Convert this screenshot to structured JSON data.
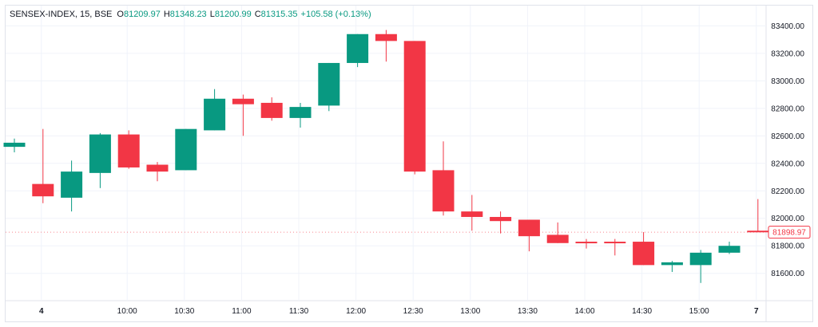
{
  "header": {
    "symbol": "SENSEX-INDEX, 15, BSE",
    "o_label": "O",
    "o_value": "81209.97",
    "h_label": "H",
    "h_value": "81348.23",
    "l_label": "L",
    "l_value": "81200.99",
    "c_label": "C",
    "c_value": "81315.35",
    "change": "+105.58 (+0.13%)"
  },
  "colors": {
    "up": "#089981",
    "down": "#f23645",
    "grid": "#f0f3fa",
    "border": "#e0e3eb"
  },
  "price_tag": "81898.97",
  "chart_data": {
    "type": "candlestick",
    "ylim": [
      81430,
      83530
    ],
    "y_ticks": [
      "83400.00",
      "83200.00",
      "83000.00",
      "82800.00",
      "82600.00",
      "82400.00",
      "82200.00",
      "82000.00",
      "81800.00",
      "81600.00"
    ],
    "x_ticks": [
      {
        "label": "4",
        "index": 1,
        "bold": true
      },
      {
        "label": "10:00",
        "index": 4
      },
      {
        "label": "10:30",
        "index": 6
      },
      {
        "label": "11:00",
        "index": 8
      },
      {
        "label": "11:30",
        "index": 10
      },
      {
        "label": "12:00",
        "index": 12
      },
      {
        "label": "12:30",
        "index": 14
      },
      {
        "label": "13:00",
        "index": 16
      },
      {
        "label": "13:30",
        "index": 18
      },
      {
        "label": "14:00",
        "index": 20
      },
      {
        "label": "14:30",
        "index": 22
      },
      {
        "label": "15:00",
        "index": 24
      },
      {
        "label": "7",
        "index": 26,
        "bold": true
      }
    ],
    "candles": [
      {
        "o": 82520,
        "h": 82580,
        "l": 82480,
        "c": 82550
      },
      {
        "o": 82250,
        "h": 82650,
        "l": 82110,
        "c": 82160
      },
      {
        "o": 82150,
        "h": 82420,
        "l": 82050,
        "c": 82340
      },
      {
        "o": 82330,
        "h": 82620,
        "l": 82220,
        "c": 82610
      },
      {
        "o": 82610,
        "h": 82640,
        "l": 82360,
        "c": 82370
      },
      {
        "o": 82390,
        "h": 82410,
        "l": 82270,
        "c": 82340
      },
      {
        "o": 82350,
        "h": 82650,
        "l": 82350,
        "c": 82650
      },
      {
        "o": 82640,
        "h": 82940,
        "l": 82640,
        "c": 82870
      },
      {
        "o": 82870,
        "h": 82900,
        "l": 82600,
        "c": 82830
      },
      {
        "o": 82840,
        "h": 82880,
        "l": 82710,
        "c": 82730
      },
      {
        "o": 82730,
        "h": 82840,
        "l": 82660,
        "c": 82810
      },
      {
        "o": 82820,
        "h": 83130,
        "l": 82780,
        "c": 83130
      },
      {
        "o": 83130,
        "h": 83340,
        "l": 83100,
        "c": 83340
      },
      {
        "o": 83340,
        "h": 83370,
        "l": 83140,
        "c": 83290
      },
      {
        "o": 83290,
        "h": 83290,
        "l": 82320,
        "c": 82340
      },
      {
        "o": 82350,
        "h": 82560,
        "l": 82020,
        "c": 82050
      },
      {
        "o": 82050,
        "h": 82170,
        "l": 81910,
        "c": 82010
      },
      {
        "o": 82010,
        "h": 82050,
        "l": 81890,
        "c": 81980
      },
      {
        "o": 81990,
        "h": 81990,
        "l": 81760,
        "c": 81870
      },
      {
        "o": 81880,
        "h": 81970,
        "l": 81820,
        "c": 81820
      },
      {
        "o": 81830,
        "h": 81850,
        "l": 81780,
        "c": 81820
      },
      {
        "o": 81830,
        "h": 81850,
        "l": 81730,
        "c": 81820
      },
      {
        "o": 81830,
        "h": 81900,
        "l": 81660,
        "c": 81660
      },
      {
        "o": 81660,
        "h": 81690,
        "l": 81610,
        "c": 81680
      },
      {
        "o": 81660,
        "h": 81770,
        "l": 81530,
        "c": 81750
      },
      {
        "o": 81750,
        "h": 81830,
        "l": 81740,
        "c": 81800
      },
      {
        "o": 81910,
        "h": 82140,
        "l": 81900,
        "c": 81900
      }
    ]
  }
}
